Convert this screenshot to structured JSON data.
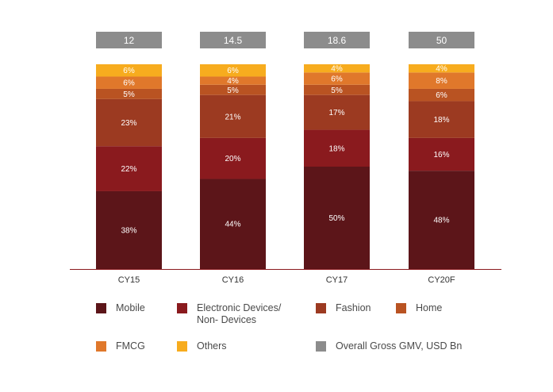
{
  "chart_data": {
    "type": "bar",
    "stacked": true,
    "categories": [
      "CY15",
      "CY16",
      "CY17",
      "CY20F"
    ],
    "totals": [
      {
        "label": "12"
      },
      {
        "label": "14.5"
      },
      {
        "label": "18.6"
      },
      {
        "label": "50"
      }
    ],
    "totals_series": "Overall Gross GMV, USD Bn",
    "ylim": [
      0,
      100
    ],
    "grid": false,
    "legend_position": "bottom",
    "series": [
      {
        "name": "Mobile",
        "color": "#5c1519",
        "values": [
          38,
          44,
          50,
          48
        ],
        "labels": [
          "38%",
          "44%",
          "50%",
          "48%"
        ]
      },
      {
        "name": "Electronic Devices/ Non- Devices",
        "color": "#8a1a1e",
        "values": [
          22,
          20,
          18,
          16
        ],
        "labels": [
          "22%",
          "20%",
          "18%",
          "16%"
        ]
      },
      {
        "name": "Fashion",
        "color": "#9c3a21",
        "values": [
          23,
          21,
          17,
          18
        ],
        "labels": [
          "23%",
          "21%",
          "17%",
          "18%"
        ]
      },
      {
        "name": "Home",
        "color": "#b95322",
        "values": [
          5,
          5,
          5,
          6
        ],
        "labels": [
          "5%",
          "5%",
          "5%",
          "6%"
        ]
      },
      {
        "name": "FMCG",
        "color": "#e0782b",
        "values": [
          6,
          4,
          6,
          8
        ],
        "labels": [
          "6%",
          "4%",
          "6%",
          "8%"
        ]
      },
      {
        "name": "Others",
        "color": "#f7ac1e",
        "values": [
          6,
          6,
          4,
          4
        ],
        "labels": [
          "6%",
          "6%",
          "4%",
          "4%"
        ]
      }
    ],
    "legend": [
      {
        "label_lines": [
          "Mobile"
        ],
        "color": "#5c1519"
      },
      {
        "label_lines": [
          "Electronic Devices/",
          "Non- Devices"
        ],
        "color": "#8a1a1e"
      },
      {
        "label_lines": [
          "Fashion"
        ],
        "color": "#9c3a21"
      },
      {
        "label_lines": [
          "Home"
        ],
        "color": "#b95322"
      },
      {
        "label_lines": [
          "FMCG"
        ],
        "color": "#e0782b"
      },
      {
        "label_lines": [
          "Others"
        ],
        "color": "#f7ac1e"
      },
      {
        "label_lines": [
          "Overall Gross GMV, USD Bn"
        ],
        "color": "#8c8c8c"
      }
    ],
    "totals_box_color": "#8c8c8c",
    "axis_color": "#8a1a1e"
  }
}
